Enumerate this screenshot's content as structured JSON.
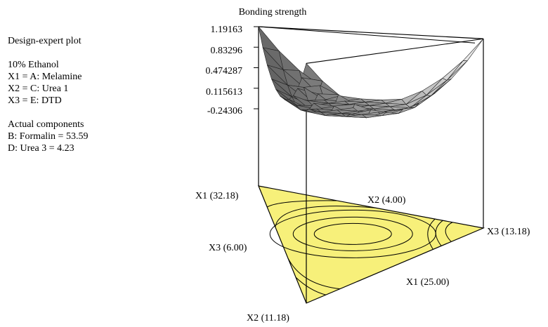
{
  "legend": {
    "title": "Design-expert plot",
    "condition": "10% Ethanol",
    "factors": [
      "X1 = A: Melamine",
      "X2 = C: Urea 1",
      "X3 = E: DTD"
    ],
    "actual_heading": "Actual components",
    "actual_values": [
      "B: Formalin = 53.59",
      "D: Urea 3 = 4.23"
    ]
  },
  "colors": {
    "triangle_fill": "#f7f07a",
    "surface_light": "#e2e2e2",
    "surface_dark": "#4a4a4a",
    "axis": "#000000"
  },
  "chart_data": {
    "type": "surface",
    "title": "Bonding strength",
    "zlabel": "Bonding strength",
    "zticks": [
      "1.19163",
      "0.83296",
      "0.474287",
      "0.115613",
      "-0.24306"
    ],
    "zlim": [
      -0.24306,
      1.19163
    ],
    "vertex_labels": {
      "top": "X1 (32.18)",
      "right": "X3 (13.18)",
      "bottom": "X2 (11.18)"
    },
    "edge_labels": {
      "top_right": "X2 (4.00)",
      "left": "X3 (6.00)",
      "bottom_right": "X1 (25.00)"
    },
    "corner_values": {
      "top": 1.19163,
      "right": 0.98,
      "bottom": 0.55
    },
    "surface_minimum": -0.24306,
    "grid": true,
    "contours": true
  }
}
